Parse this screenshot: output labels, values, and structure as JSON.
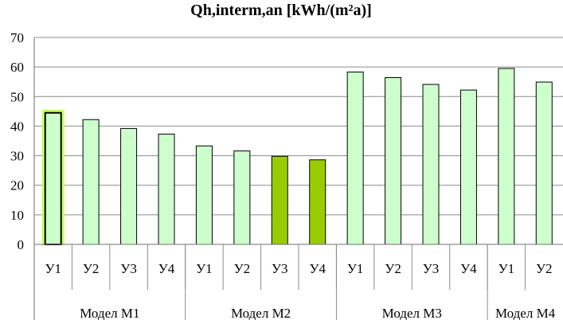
{
  "chart_data": {
    "type": "bar",
    "title": "Qh,interm,an [kWh/(m²a)]",
    "ylim": [
      0,
      70
    ],
    "y_ticks": [
      "0",
      "10",
      "20",
      "30",
      "40",
      "50",
      "60",
      "70"
    ],
    "grid": true,
    "legend": "none",
    "groups": [
      {
        "label": "Модел М1",
        "count": 4
      },
      {
        "label": "Модел М2",
        "count": 4
      },
      {
        "label": "Модел М3",
        "count": 4
      },
      {
        "label": "Модел М4",
        "count": 2
      }
    ],
    "categories": [
      "У1",
      "У2",
      "У3",
      "У4",
      "У1",
      "У2",
      "У3",
      "У4",
      "У1",
      "У2",
      "У3",
      "У4",
      "У1",
      "У2"
    ],
    "values": [
      44.5,
      42.2,
      39.2,
      37.3,
      33.3,
      31.6,
      29.8,
      28.6,
      58.3,
      56.4,
      54.1,
      52.2,
      59.5,
      54.9
    ],
    "bar_fills": [
      "#ccffcc",
      "#ccffcc",
      "#ccffcc",
      "#ccffcc",
      "#ccffcc",
      "#ccffcc",
      "#99cc00",
      "#99cc00",
      "#ccffcc",
      "#ccffcc",
      "#ccffcc",
      "#ccffcc",
      "#ccffcc",
      "#ccffcc"
    ],
    "highlighted_bar": 0,
    "colors": {
      "light_bar": "#ccffcc",
      "dark_bar": "#99cc00",
      "bar_outline": "#000000",
      "highlight_glow": "#ccff66"
    }
  }
}
